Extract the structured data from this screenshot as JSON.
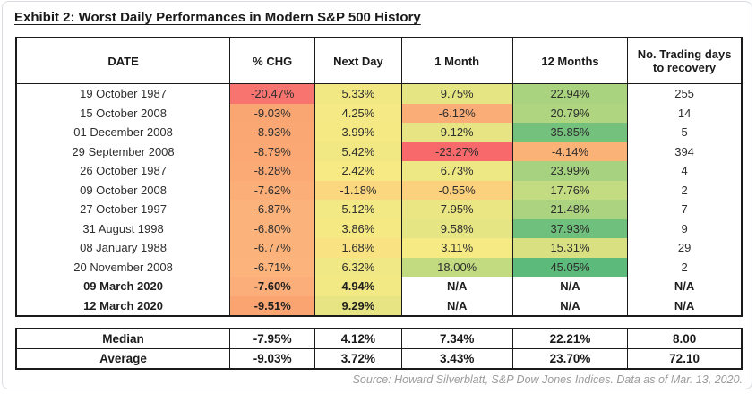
{
  "title": "Exhibit 2:  Worst Daily Performances in Modern S&P 500 History",
  "table": {
    "columns": [
      "DATE",
      "% CHG",
      "Next Day",
      "1 Month",
      "12 Months",
      "No. Trading days to recovery"
    ],
    "rows": [
      {
        "date": "19 October 1987",
        "chg": "-20.47%",
        "next_day": "5.33%",
        "one_month": "9.75%",
        "twelve_months": "22.94%",
        "recovery": "255",
        "bold": false,
        "colors": {
          "chg": "#F8756F",
          "next_day": "#F1E884",
          "one_month": "#E6E583",
          "twelve_months": "#A9D37F"
        }
      },
      {
        "date": "15 October 2008",
        "chg": "-9.03%",
        "next_day": "4.25%",
        "one_month": "-6.12%",
        "twelve_months": "20.79%",
        "recovery": "14",
        "bold": false,
        "colors": {
          "chg": "#FAA673",
          "next_day": "#F4E984",
          "one_month": "#FBAD77",
          "twelve_months": "#AFD580"
        }
      },
      {
        "date": "01 December 2008",
        "chg": "-8.93%",
        "next_day": "3.99%",
        "one_month": "9.12%",
        "twelve_months": "35.85%",
        "recovery": "5",
        "bold": false,
        "colors": {
          "chg": "#FAA774",
          "next_day": "#F5E984",
          "one_month": "#E7E583",
          "twelve_months": "#74C17D"
        }
      },
      {
        "date": "29 September 2008",
        "chg": "-8.79%",
        "next_day": "5.42%",
        "one_month": "-23.27%",
        "twelve_months": "-4.14%",
        "recovery": "394",
        "bold": false,
        "colors": {
          "chg": "#FBA875",
          "next_day": "#F1E884",
          "one_month": "#F8696B",
          "twelve_months": "#FBB277"
        }
      },
      {
        "date": "26 October 1987",
        "chg": "-8.28%",
        "next_day": "2.42%",
        "one_month": "6.73%",
        "twelve_months": "23.99%",
        "recovery": "4",
        "bold": false,
        "colors": {
          "chg": "#FBAA76",
          "next_day": "#F7EA84",
          "one_month": "#EDE784",
          "twelve_months": "#A7D27F"
        }
      },
      {
        "date": "09 October 2008",
        "chg": "-7.62%",
        "next_day": "-1.18%",
        "one_month": "-0.55%",
        "twelve_months": "17.76%",
        "recovery": "2",
        "bold": false,
        "colors": {
          "chg": "#FBAE78",
          "next_day": "#FBD87F",
          "one_month": "#FCD17E",
          "twelve_months": "#C3DC81"
        }
      },
      {
        "date": "27 October 1997",
        "chg": "-6.87%",
        "next_day": "5.12%",
        "one_month": "7.95%",
        "twelve_months": "21.48%",
        "recovery": "7",
        "bold": false,
        "colors": {
          "chg": "#FCB27B",
          "next_day": "#F2E984",
          "one_month": "#EAE683",
          "twelve_months": "#ACD480"
        }
      },
      {
        "date": "31 August 1998",
        "chg": "-6.80%",
        "next_day": "3.86%",
        "one_month": "9.58%",
        "twelve_months": "37.93%",
        "recovery": "9",
        "bold": false,
        "colors": {
          "chg": "#FCB37B",
          "next_day": "#F5E984",
          "one_month": "#E6E583",
          "twelve_months": "#6FC07C"
        }
      },
      {
        "date": "08 January 1988",
        "chg": "-6.77%",
        "next_day": "1.68%",
        "one_month": "3.11%",
        "twelve_months": "15.31%",
        "recovery": "29",
        "bold": false,
        "colors": {
          "chg": "#FCB37B",
          "next_day": "#F8E282",
          "one_month": "#F6EA84",
          "twelve_months": "#D8E082"
        }
      },
      {
        "date": "20 November 2008",
        "chg": "-6.71%",
        "next_day": "6.32%",
        "one_month": "18.00%",
        "twelve_months": "45.05%",
        "recovery": "2",
        "bold": false,
        "colors": {
          "chg": "#FCB37C",
          "next_day": "#EFE884",
          "one_month": "#C2DB81",
          "twelve_months": "#5CBA7B"
        }
      },
      {
        "date": "09 March 2020",
        "chg": "-7.60%",
        "next_day": "4.94%",
        "one_month": "N/A",
        "twelve_months": "N/A",
        "recovery": "N/A",
        "bold": true,
        "colors": {
          "chg": "#FBAE79",
          "next_day": "#F3E984",
          "one_month": "#FFFFFF",
          "twelve_months": "#FFFFFF"
        }
      },
      {
        "date": "12 March 2020",
        "chg": "-9.51%",
        "next_day": "9.29%",
        "one_month": "N/A",
        "twelve_months": "N/A",
        "recovery": "N/A",
        "bold": true,
        "colors": {
          "chg": "#FAA472",
          "next_day": "#E7E583",
          "one_month": "#FFFFFF",
          "twelve_months": "#FFFFFF"
        }
      }
    ]
  },
  "summary": {
    "rows": [
      {
        "label": "Median",
        "chg": "-7.95%",
        "next_day": "4.12%",
        "one_month": "7.34%",
        "twelve_months": "22.21%",
        "recovery": "8.00"
      },
      {
        "label": "Average",
        "chg": "-9.03%",
        "next_day": "3.72%",
        "one_month": "3.43%",
        "twelve_months": "23.70%",
        "recovery": "72.10"
      }
    ]
  },
  "source": "Source: Howard Silverblatt, S&P Dow Jones Indices. Data as of Mar. 13, 2020.",
  "heatmap_colors": {
    "worst": "#F8696B",
    "mid": "#FFEB84",
    "best": "#5CBA7B"
  }
}
